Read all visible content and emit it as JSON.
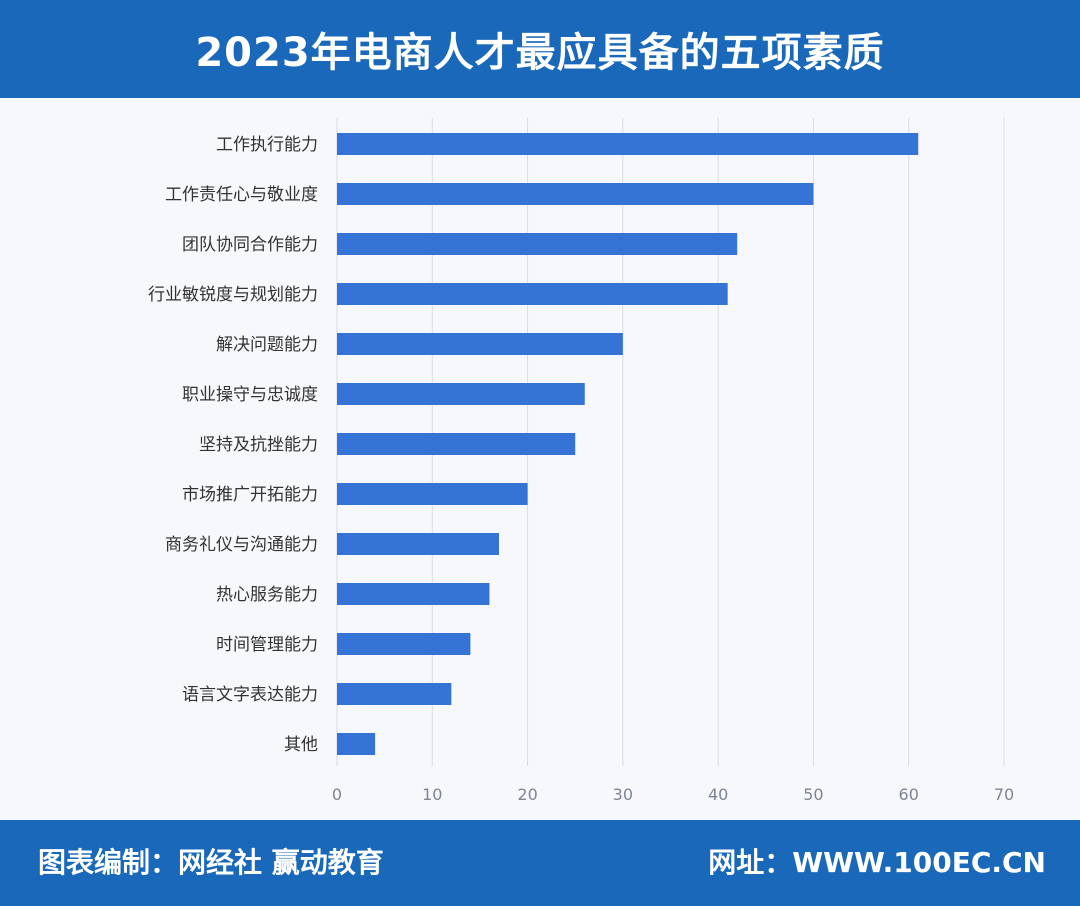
{
  "header": {
    "title": "2023年电商人才最应具备的五项素质"
  },
  "footer": {
    "left_text": "图表编制：网经社 赢动教育",
    "right_text": "网址：WWW.100EC.CN"
  },
  "colors": {
    "bar": "#3573d5",
    "banner": "#1a68b9",
    "grid": "#d9dde5"
  },
  "chart_data": {
    "type": "bar",
    "orientation": "horizontal",
    "title": "2023年电商人才最应具备的五项素质",
    "categories": [
      "工作执行能力",
      "工作责任心与敬业度",
      "团队协同合作能力",
      "行业敏锐度与规划能力",
      "解决问题能力",
      "职业操守与忠诚度",
      "坚持及抗挫能力",
      "市场推广开拓能力",
      "商务礼仪与沟通能力",
      "热心服务能力",
      "时间管理能力",
      "语言文字表达能力",
      "其他"
    ],
    "values": [
      61,
      50,
      42,
      41,
      30,
      26,
      25,
      20,
      17,
      16,
      14,
      12,
      4
    ],
    "xlim": [
      0,
      70
    ],
    "xticks": [
      "0",
      "10",
      "20",
      "30",
      "40",
      "50",
      "60",
      "70"
    ],
    "grid": true,
    "legend": "none"
  }
}
